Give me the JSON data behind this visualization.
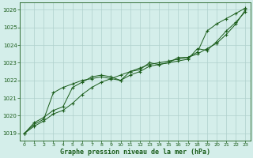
{
  "title": "Graphe pression niveau de la mer (hPa)",
  "background_color": "#d4eeea",
  "plot_bg_color": "#d4eeea",
  "grid_color": "#b0d0cc",
  "line_color": "#1a5c1a",
  "marker_color": "#1a5c1a",
  "text_color": "#1a5c1a",
  "xlim": [
    -0.5,
    23.5
  ],
  "ylim": [
    1018.6,
    1026.4
  ],
  "yticks": [
    1019,
    1020,
    1021,
    1022,
    1023,
    1024,
    1025,
    1026
  ],
  "xticks": [
    0,
    1,
    2,
    3,
    4,
    5,
    6,
    7,
    8,
    9,
    10,
    11,
    12,
    13,
    14,
    15,
    16,
    17,
    18,
    19,
    20,
    21,
    22,
    23
  ],
  "series1_x": [
    0,
    1,
    2,
    3,
    4,
    5,
    6,
    7,
    8,
    9,
    10,
    11,
    12,
    13,
    14,
    15,
    16,
    17,
    18,
    19,
    20,
    21,
    22,
    23
  ],
  "series1_y": [
    1019.0,
    1019.5,
    1019.8,
    1021.3,
    1021.6,
    1021.8,
    1022.0,
    1022.1,
    1022.2,
    1022.1,
    1022.0,
    1022.3,
    1022.5,
    1022.8,
    1022.9,
    1023.0,
    1023.1,
    1023.2,
    1023.8,
    1023.7,
    1024.2,
    1024.8,
    1025.3,
    1025.9
  ],
  "series2_x": [
    0,
    1,
    2,
    3,
    4,
    5,
    6,
    7,
    8,
    9,
    10,
    11,
    12,
    13,
    14,
    15,
    16,
    17,
    18,
    19,
    20,
    21,
    22,
    23
  ],
  "series2_y": [
    1019.0,
    1019.6,
    1019.9,
    1020.3,
    1020.5,
    1021.6,
    1021.9,
    1022.2,
    1022.3,
    1022.2,
    1022.0,
    1022.5,
    1022.6,
    1023.0,
    1022.9,
    1023.0,
    1023.3,
    1023.3,
    1023.6,
    1024.8,
    1025.2,
    1025.5,
    1025.8,
    1026.1
  ],
  "series3_x": [
    0,
    1,
    2,
    3,
    4,
    5,
    6,
    7,
    8,
    9,
    10,
    11,
    12,
    13,
    14,
    15,
    16,
    17,
    18,
    19,
    20,
    21,
    22,
    23
  ],
  "series3_y": [
    1019.0,
    1019.4,
    1019.7,
    1020.1,
    1020.3,
    1020.7,
    1021.2,
    1021.6,
    1021.9,
    1022.1,
    1022.3,
    1022.5,
    1022.7,
    1022.9,
    1023.0,
    1023.1,
    1023.2,
    1023.3,
    1023.5,
    1023.8,
    1024.1,
    1024.6,
    1025.2,
    1026.0
  ]
}
